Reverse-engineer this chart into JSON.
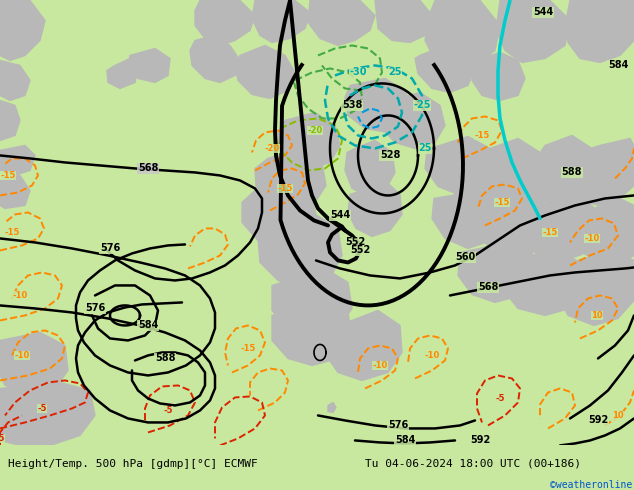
{
  "title_left": "Height/Temp. 500 hPa [gdmp][°C] ECMWF",
  "title_right": "Tu 04-06-2024 18:00 UTC (00+186)",
  "credit": "©weatheronline.co.uk",
  "bg_color_green": "#c8e8a0",
  "bg_color_gray": "#c8c8c8",
  "bg_color_white": "#e8e8e8",
  "sea_color": "#c8e8a0",
  "bottom_bar_color": "#ffffff",
  "black": "#000000",
  "orange": "#ff8800",
  "teal": "#00aaaa",
  "teal2": "#00bbbb",
  "cyan": "#00ccff",
  "blue": "#0055cc",
  "green": "#44bb44",
  "lime": "#88cc44",
  "red": "#dd2200",
  "gray": "#aaaaaa"
}
